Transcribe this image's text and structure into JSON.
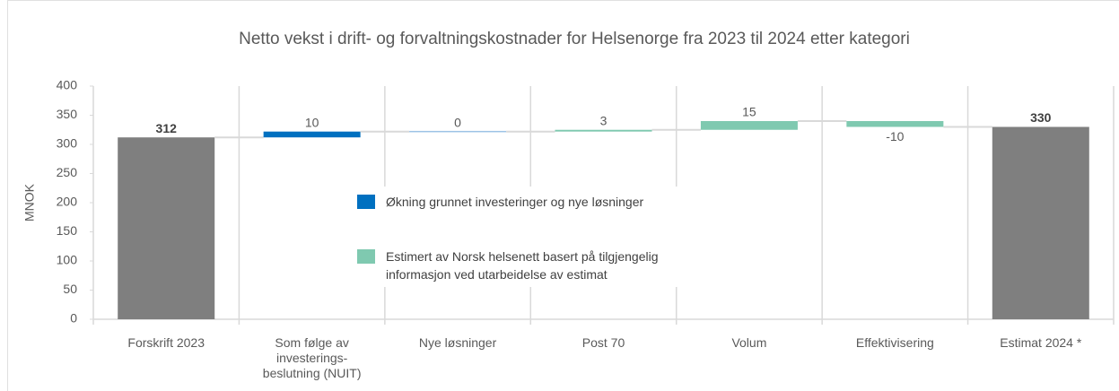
{
  "chart_data": {
    "type": "waterfall",
    "title": "Netto vekst i drift- og forvaltningskostnader for Helsenorge fra 2023 til 2024 etter kategori",
    "ylabel": "MNOK",
    "categories": [
      "Forskrift 2023",
      "Som følge av investerings-beslutning (NUIT)",
      "Nye løsninger",
      "Post 70",
      "Volum",
      "Effektivisering",
      "Estimat 2024 *"
    ],
    "values": [
      312,
      10,
      0,
      3,
      15,
      -10,
      330
    ],
    "measure": [
      "absolute",
      "relative",
      "relative",
      "relative",
      "relative",
      "relative",
      "absolute"
    ],
    "colors": [
      "#7f7f7f",
      "#0070c0",
      "#9dc3e6",
      "#7fc9b0",
      "#7fc9b0",
      "#7fc9b0",
      "#7f7f7f"
    ],
    "ylim": [
      0,
      400
    ],
    "yticks": [
      0,
      50,
      100,
      150,
      200,
      250,
      300,
      350,
      400
    ],
    "legend": [
      {
        "name": "Økning grunnet investeringer og nye løsninger",
        "color": "#0070c0"
      },
      {
        "name": "Estimert av Norsk helsenett basert på tilgjengelig informasjon ved utarbeidelse av estimat",
        "color": "#7fc9b0"
      }
    ]
  }
}
